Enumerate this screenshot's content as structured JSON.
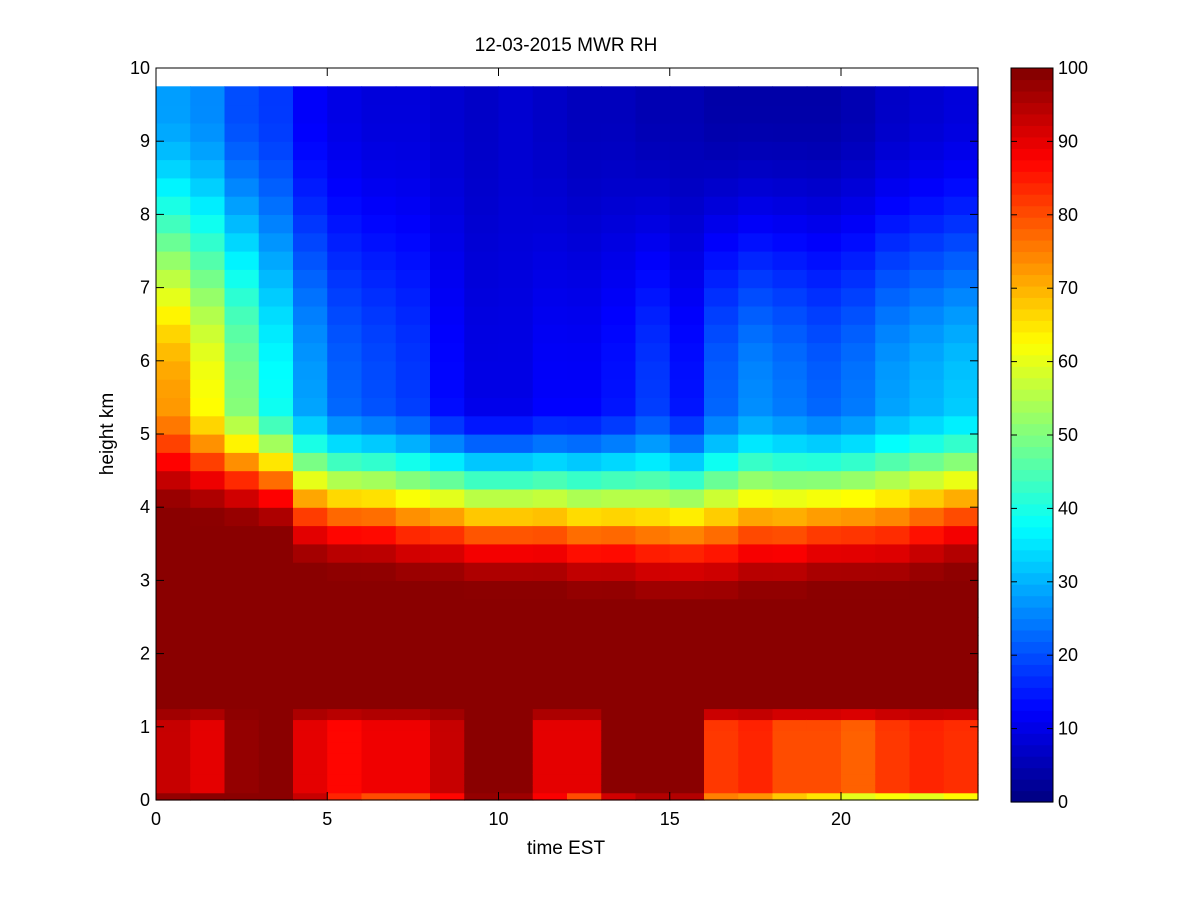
{
  "chart_data": {
    "type": "heatmap",
    "title": "12-03-2015 MWR RH",
    "xlabel": "time EST",
    "ylabel": "height km",
    "xlim": [
      0,
      24
    ],
    "ylim": [
      0,
      10
    ],
    "xticks": [
      0,
      5,
      10,
      15,
      20
    ],
    "yticks": [
      0,
      1,
      2,
      3,
      4,
      5,
      6,
      7,
      8,
      9,
      10
    ],
    "colorbar": {
      "label": "",
      "range": [
        0,
        100
      ],
      "ticks": [
        0,
        10,
        20,
        30,
        40,
        50,
        60,
        70,
        80,
        90,
        100
      ],
      "colormap": "jet"
    },
    "time_hours": [
      0.0,
      1.0,
      2.0,
      3.0,
      4.0,
      5.0,
      6.0,
      7.0,
      8.0,
      9.0,
      10.0,
      11.0,
      12.0,
      13.0,
      14.0,
      15.0,
      16.0,
      17.0,
      18.0,
      19.0,
      20.0,
      21.0,
      22.0,
      23.0
    ],
    "height_km": [
      0.0,
      0.1,
      0.2,
      0.35,
      0.5,
      0.65,
      0.8,
      0.95,
      1.1,
      1.25,
      1.5,
      1.75,
      2.0,
      2.25,
      2.5,
      2.75,
      3.0,
      3.25,
      3.5,
      3.75,
      4.0,
      4.25,
      4.5,
      4.75,
      5.0,
      5.25,
      5.5,
      5.75,
      6.0,
      6.25,
      6.5,
      6.75,
      7.0,
      7.25,
      7.5,
      7.75,
      8.0,
      8.25,
      8.5,
      8.75,
      9.0,
      9.25,
      9.5,
      9.75
    ],
    "height_max_km": 9.75,
    "profile_model": "RH values estimated from the image per time column: near-surface value, saturated layer from ~1 km up to the moist-layer top, then drying aloft toward the upper-level value",
    "surface_rh": [
      98,
      99,
      99,
      99,
      93,
      84,
      80,
      80,
      87,
      98,
      97,
      88,
      80,
      92,
      95,
      95,
      75,
      73,
      68,
      65,
      60,
      62,
      60,
      63
    ],
    "low_level_rh": [
      93,
      90,
      98,
      99,
      90,
      87,
      89,
      89,
      93,
      99,
      99,
      90,
      90,
      99,
      99,
      99,
      82,
      84,
      80,
      80,
      78,
      82,
      84,
      83
    ],
    "moist_layer_top_km": [
      3.9,
      3.8,
      3.7,
      3.6,
      3.1,
      3.0,
      3.0,
      2.9,
      2.9,
      2.8,
      2.8,
      2.8,
      2.7,
      2.7,
      2.6,
      2.6,
      2.6,
      2.7,
      2.7,
      2.8,
      2.8,
      2.8,
      2.9,
      3.0
    ],
    "dry_layer_rh_5km": [
      72,
      62,
      50,
      38,
      28,
      22,
      20,
      18,
      13,
      10,
      10,
      12,
      12,
      14,
      18,
      14,
      22,
      26,
      24,
      22,
      24,
      28,
      30,
      32
    ],
    "upper_rh_9km": [
      28,
      26,
      20,
      18,
      12,
      10,
      9,
      9,
      8,
      7,
      8,
      7,
      6,
      6,
      5,
      5,
      4,
      4,
      4,
      4,
      5,
      7,
      8,
      9
    ]
  }
}
